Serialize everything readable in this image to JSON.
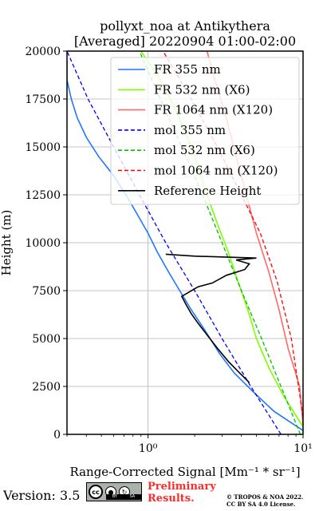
{
  "chart_data": {
    "type": "line",
    "title_line1": "pollyxt_noa at Antikythera",
    "title_line2": "[Averaged] 20220904 01:00-02:00",
    "ylabel": "Height (m)",
    "xlabel": "Range-Corrected Signal [Mm⁻¹ * sr⁻¹]",
    "xscale": "log",
    "xlim": [
      0.3,
      10
    ],
    "ylim": [
      0,
      20000
    ],
    "yticks": [
      "0",
      "2500",
      "5000",
      "7500",
      "10000",
      "12500",
      "15000",
      "17500",
      "20000"
    ],
    "xticks": [
      "10⁰",
      "10¹"
    ],
    "grid": true,
    "legend_position": "top-right",
    "series": [
      {
        "name": "FR 355 nm",
        "color": "#1f77ff",
        "style": "solid",
        "points": [
          [
            10,
            200
          ],
          [
            6.5,
            1200
          ],
          [
            4.8,
            2200
          ],
          [
            3.6,
            3200
          ],
          [
            2.9,
            4200
          ],
          [
            2.3,
            5500
          ],
          [
            1.9,
            6500
          ],
          [
            1.6,
            7500
          ],
          [
            1.35,
            8500
          ],
          [
            1.15,
            9500
          ],
          [
            1.0,
            10500
          ],
          [
            0.85,
            11500
          ],
          [
            0.72,
            12500
          ],
          [
            0.6,
            13500
          ],
          [
            0.48,
            14500
          ],
          [
            0.4,
            15500
          ],
          [
            0.35,
            16500
          ],
          [
            0.32,
            17500
          ],
          [
            0.3,
            18500
          ],
          [
            0.3,
            19500
          ]
        ]
      },
      {
        "name": "FR 532 nm (X6)",
        "color": "#7fff00",
        "style": "solid",
        "points": [
          [
            10,
            400
          ],
          [
            7.5,
            2000
          ],
          [
            6,
            3500
          ],
          [
            5,
            5000
          ],
          [
            4.4,
            6500
          ],
          [
            3.8,
            8000
          ],
          [
            3.3,
            9500
          ],
          [
            2.8,
            11000
          ],
          [
            2.4,
            12500
          ],
          [
            2.1,
            14000
          ],
          [
            1.8,
            15500
          ],
          [
            1.5,
            17000
          ],
          [
            1.2,
            18500
          ],
          [
            0.9,
            20000
          ]
        ]
      },
      {
        "name": "FR 1064 nm (X120)",
        "color": "#ff6a6a",
        "style": "solid",
        "points": [
          [
            10,
            500
          ],
          [
            9.5,
            2500
          ],
          [
            8,
            4500
          ],
          [
            7,
            6500
          ],
          [
            6,
            8500
          ],
          [
            5,
            10500
          ],
          [
            4.3,
            12500
          ],
          [
            3.7,
            14500
          ],
          [
            3.2,
            16500
          ],
          [
            2.7,
            18500
          ],
          [
            2.4,
            20000
          ]
        ]
      },
      {
        "name": "mol 355 nm",
        "color": "#0000ff",
        "style": "dashed",
        "points": [
          [
            7.2,
            0
          ],
          [
            4.6,
            2500
          ],
          [
            3.0,
            5000
          ],
          [
            2.0,
            7500
          ],
          [
            1.3,
            10000
          ],
          [
            0.88,
            12500
          ],
          [
            0.6,
            15000
          ],
          [
            0.41,
            17500
          ],
          [
            0.3,
            20000
          ]
        ]
      },
      {
        "name": "mol 532 nm (X6)",
        "color": "#00c000",
        "style": "dashed",
        "points": [
          [
            9.6,
            0
          ],
          [
            7.2,
            2500
          ],
          [
            5.4,
            5000
          ],
          [
            4.0,
            7500
          ],
          [
            3.0,
            10000
          ],
          [
            2.25,
            12500
          ],
          [
            1.65,
            15000
          ],
          [
            1.2,
            17500
          ],
          [
            0.88,
            20000
          ]
        ]
      },
      {
        "name": "mol 1064 nm (X120)",
        "color": "#ff0000",
        "style": "dashed",
        "points": [
          [
            10,
            900
          ],
          [
            8.4,
            5000
          ],
          [
            6.8,
            8000
          ],
          [
            5.3,
            10500
          ],
          [
            4.0,
            12500
          ],
          [
            2.8,
            15000
          ],
          [
            1.9,
            17500
          ],
          [
            1.25,
            20000
          ]
        ]
      },
      {
        "name": "Reference Height",
        "color": "#000000",
        "style": "solid",
        "points": [
          [
            4.5,
            2700
          ],
          [
            3.9,
            3200
          ],
          [
            3.3,
            3800
          ],
          [
            2.8,
            4500
          ],
          [
            2.4,
            5200
          ],
          [
            2.1,
            5800
          ],
          [
            1.9,
            6300
          ],
          [
            1.75,
            6800
          ],
          [
            1.65,
            7200
          ],
          [
            2.1,
            7700
          ],
          [
            2.6,
            7900
          ],
          [
            3.2,
            8300
          ],
          [
            4.2,
            8600
          ],
          [
            4.5,
            8900
          ],
          [
            3.7,
            9100
          ],
          [
            5.0,
            9200
          ],
          [
            2.0,
            9300
          ],
          [
            1.3,
            9400
          ]
        ]
      }
    ]
  },
  "footer": {
    "version": "Version: 3.5",
    "cc_main": "cc",
    "cc_by": "BY",
    "cc_sa": "SA",
    "preliminary_line1": "Preliminary",
    "preliminary_line2": "Results.",
    "copyright_line1": "© TROPOS & NOA 2022.",
    "copyright_line2": "CC BY SA 4.0 License."
  }
}
